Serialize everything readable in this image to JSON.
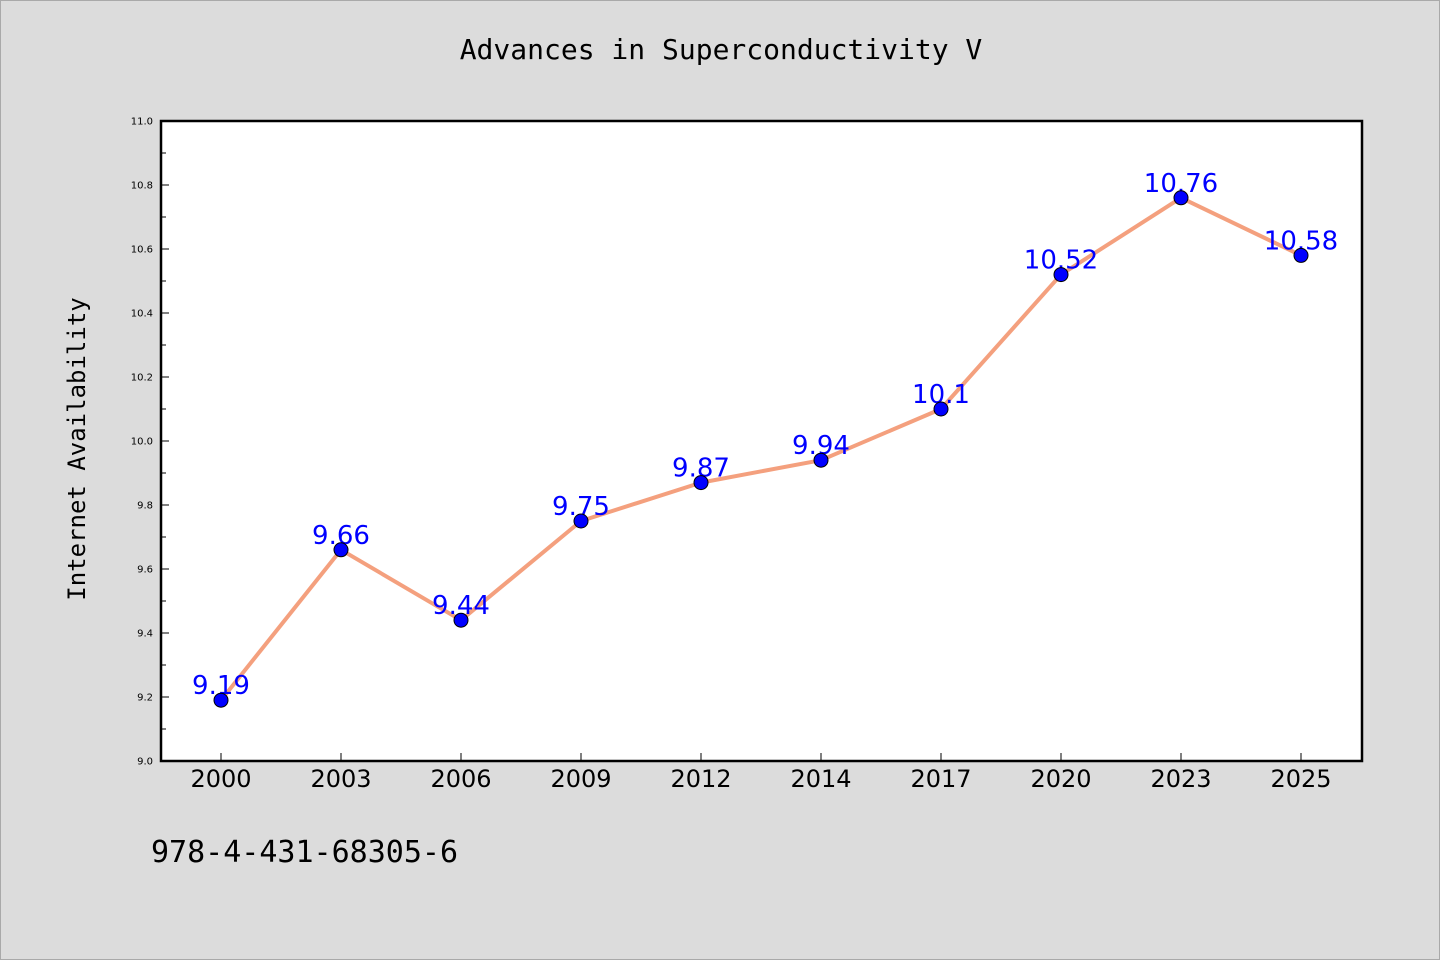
{
  "chart_data": {
    "type": "line",
    "title": "Advances in Superconductivity V",
    "xlabel": "",
    "ylabel": "Internet Availability",
    "categories": [
      "2000",
      "2003",
      "2006",
      "2009",
      "2012",
      "2014",
      "2017",
      "2020",
      "2023",
      "2025"
    ],
    "series": [
      {
        "values": [
          9.19,
          9.66,
          9.44,
          9.75,
          9.87,
          9.94,
          10.1,
          10.52,
          10.76,
          10.58
        ]
      }
    ],
    "data_labels": [
      "9.19",
      "9.66",
      "9.44",
      "9.75",
      "9.87",
      "9.94",
      "10.1",
      "10.52",
      "10.76",
      "10.58"
    ],
    "ylim": [
      9.0,
      11.0
    ],
    "yticks": [
      "9.0",
      "9.2",
      "9.4",
      "9.6",
      "9.8",
      "10.0",
      "10.2",
      "10.4",
      "10.6",
      "10.8",
      "11.0"
    ],
    "grid": false,
    "legend": "none",
    "colors": {
      "line": "#f4a07e",
      "marker": "#0000ff",
      "label": "#0000ff",
      "background": "#dcdcdc",
      "plot_background": "#ffffff"
    }
  },
  "footer": {
    "isbn": "978-4-431-68305-6"
  }
}
